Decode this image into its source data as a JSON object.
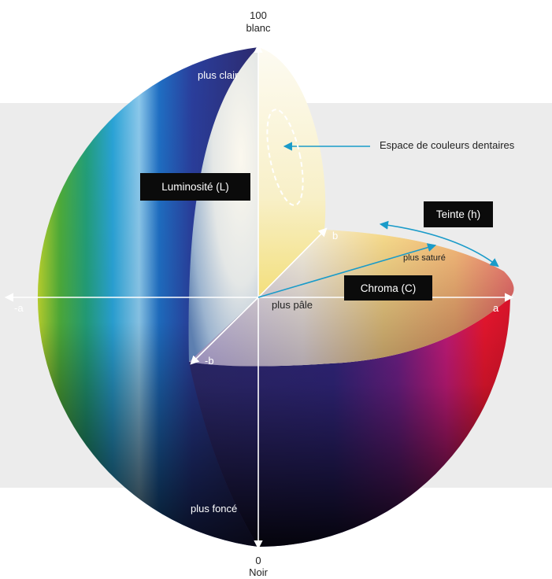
{
  "labels": {
    "top_value": "100",
    "top_name": "blanc",
    "bottom_value": "0",
    "bottom_name": "Noir",
    "lighter": "plus clair",
    "darker": "plus foncé",
    "paler": "plus pâle",
    "more_saturated": "plus saturé",
    "axis_a_pos": "a",
    "axis_a_neg": "-a",
    "axis_b_pos": "b",
    "axis_b_neg": "-b",
    "dental_space": "Espace de couleurs dentaires"
  },
  "boxes": {
    "lightness": "Luminosité (L)",
    "hue": "Teinte (h)",
    "chroma": "Chroma (C)"
  },
  "colors": {
    "background_band": "#ececec",
    "arrow_white": "#ffffff",
    "arrow_blue": "#1a9bc9",
    "box_fill": "#0b0b0b"
  },
  "icons": {
    "color_solid": "lab-color-sphere",
    "dental_region": "dashed-ellipse",
    "pointer": "blue-arrow"
  }
}
